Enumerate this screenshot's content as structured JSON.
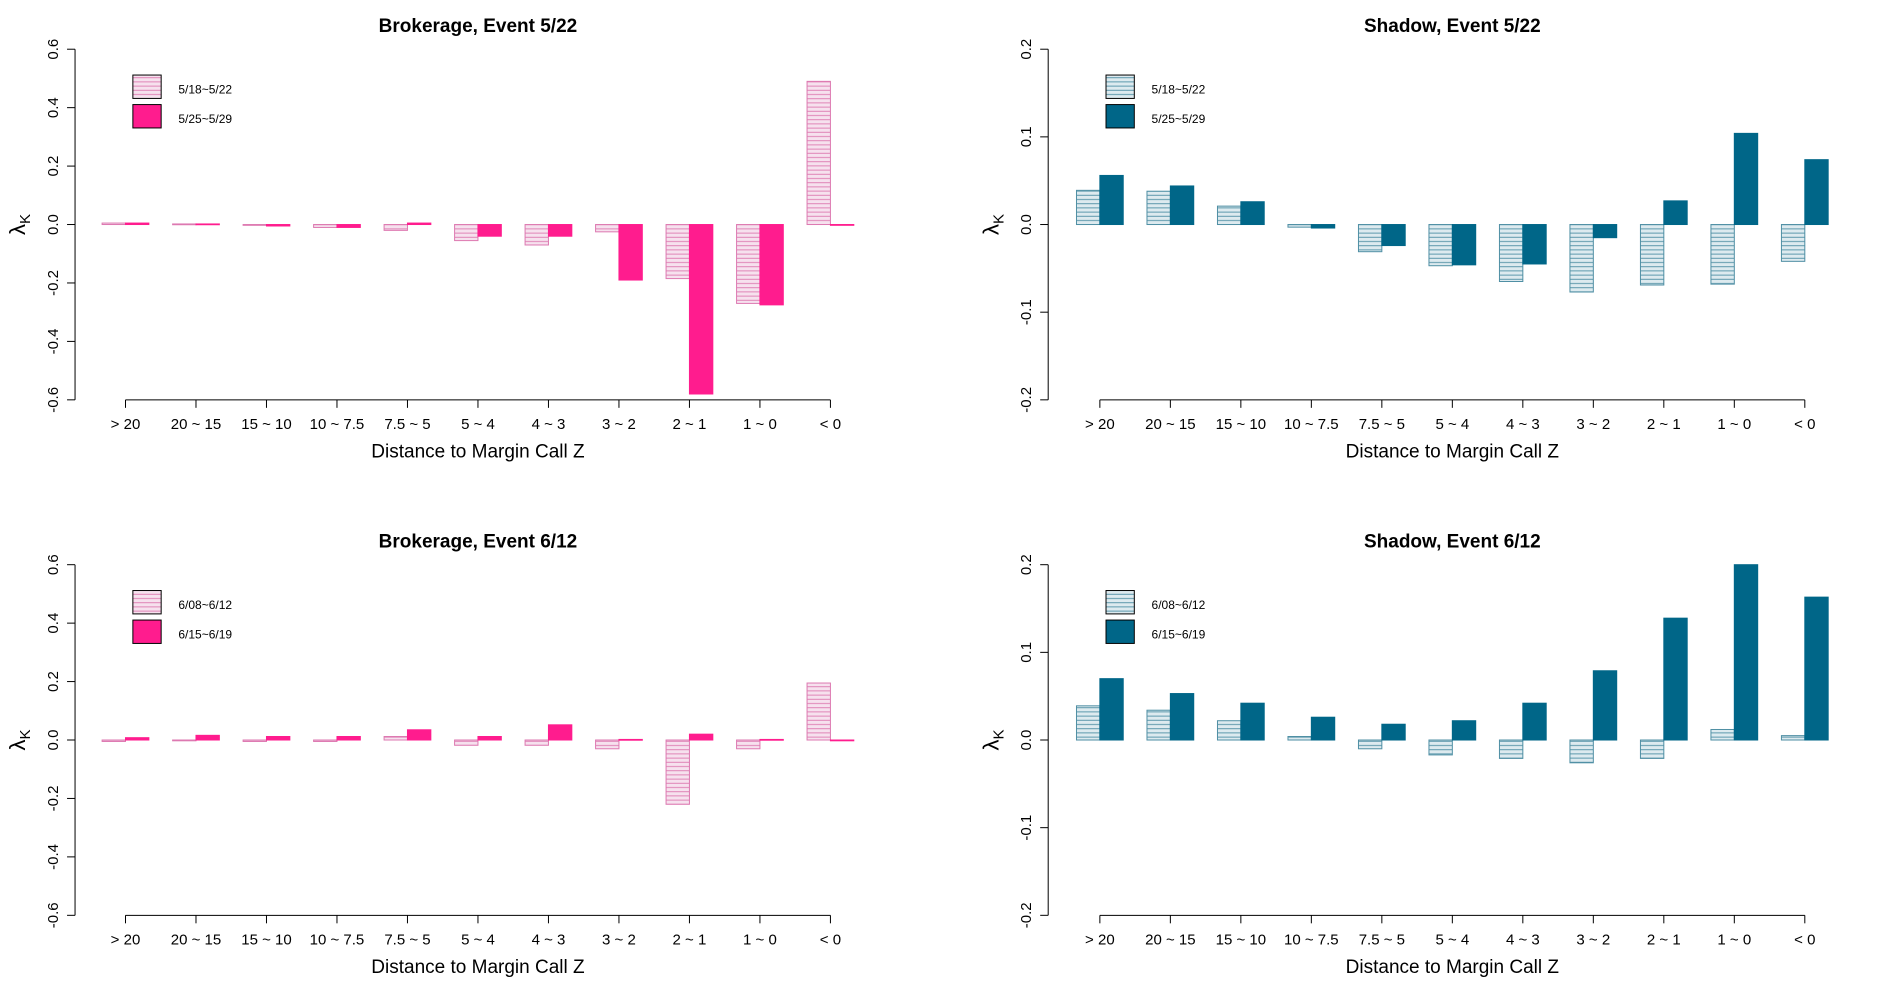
{
  "chart_data": [
    {
      "type": "bar",
      "title": "Brokerage, Event 5/22",
      "xlabel": "Distance to Margin Call Z",
      "ylabel": "λ",
      "ylabel_subscript": "K",
      "ylim": [
        -0.6,
        0.6
      ],
      "yticks": [
        "-0.6",
        "-0.4",
        "-0.2",
        "0.0",
        "0.2",
        "0.4",
        "0.6"
      ],
      "categories": [
        "> 20",
        "20 ~ 15",
        "15 ~ 10",
        "10 ~ 7.5",
        "7.5 ~ 5",
        "5 ~ 4",
        "4 ~ 3",
        "3 ~ 2",
        "2 ~ 1",
        "1 ~ 0",
        "< 0"
      ],
      "series": [
        {
          "name": "5/18~5/22",
          "style": "hatched",
          "values": [
            0.005,
            0.002,
            -0.002,
            -0.01,
            -0.02,
            -0.055,
            -0.07,
            -0.025,
            -0.185,
            -0.27,
            0.49
          ]
        },
        {
          "name": "5/25~5/29",
          "style": "solid",
          "values": [
            0.005,
            0.002,
            -0.005,
            -0.01,
            0.005,
            -0.04,
            -0.04,
            -0.19,
            -0.58,
            -0.275,
            0.0
          ]
        }
      ],
      "colors": {
        "fill": "#FF1C8E",
        "hatch": "#DD79B1",
        "hatch_bg": "#F6E1EE"
      },
      "legend_position": "top-left"
    },
    {
      "type": "bar",
      "title": "Shadow, Event 5/22",
      "xlabel": "Distance to Margin Call Z",
      "ylabel": "λ",
      "ylabel_subscript": "K",
      "ylim": [
        -0.2,
        0.2
      ],
      "yticks": [
        "-0.2",
        "-0.1",
        "0.0",
        "0.1",
        "0.2"
      ],
      "categories": [
        "> 20",
        "20 ~ 15",
        "15 ~ 10",
        "10 ~ 7.5",
        "7.5 ~ 5",
        "5 ~ 4",
        "4 ~ 3",
        "3 ~ 2",
        "2 ~ 1",
        "1 ~ 0",
        "< 0"
      ],
      "series": [
        {
          "name": "5/18~5/22",
          "style": "hatched",
          "values": [
            0.039,
            0.038,
            0.021,
            -0.003,
            -0.031,
            -0.047,
            -0.065,
            -0.077,
            -0.069,
            -0.068,
            -0.042
          ]
        },
        {
          "name": "5/25~5/29",
          "style": "solid",
          "values": [
            0.056,
            0.044,
            0.026,
            -0.004,
            -0.024,
            -0.046,
            -0.045,
            -0.015,
            0.027,
            0.104,
            0.074
          ]
        }
      ],
      "colors": {
        "fill": "#006688",
        "hatch": "#4F8FA4",
        "hatch_bg": "#DDEAEF"
      },
      "legend_position": "top-left"
    },
    {
      "type": "bar",
      "title": "Brokerage, Event 6/12",
      "xlabel": "Distance to Margin Call Z",
      "ylabel": "λ",
      "ylabel_subscript": "K",
      "ylim": [
        -0.6,
        0.6
      ],
      "yticks": [
        "-0.6",
        "-0.4",
        "-0.2",
        "0.0",
        "0.2",
        "0.4",
        "0.6"
      ],
      "categories": [
        "> 20",
        "20 ~ 15",
        "15 ~ 10",
        "10 ~ 7.5",
        "7.5 ~ 5",
        "5 ~ 4",
        "4 ~ 3",
        "3 ~ 2",
        "2 ~ 1",
        "1 ~ 0",
        "< 0"
      ],
      "series": [
        {
          "name": "6/08~6/12",
          "style": "hatched",
          "values": [
            -0.005,
            -0.002,
            -0.005,
            -0.005,
            0.012,
            -0.018,
            -0.018,
            -0.03,
            -0.22,
            -0.03,
            0.195
          ]
        },
        {
          "name": "6/15~6/19",
          "style": "solid",
          "values": [
            0.008,
            0.016,
            0.012,
            0.012,
            0.035,
            0.012,
            0.052,
            0.002,
            0.02,
            0.002,
            0.0
          ]
        }
      ],
      "colors": {
        "fill": "#FF1C8E",
        "hatch": "#DD79B1",
        "hatch_bg": "#F6E1EE"
      },
      "legend_position": "top-left"
    },
    {
      "type": "bar",
      "title": "Shadow, Event 6/12",
      "xlabel": "Distance to Margin Call Z",
      "ylabel": "λ",
      "ylabel_subscript": "K",
      "ylim": [
        -0.2,
        0.2
      ],
      "yticks": [
        "-0.2",
        "-0.1",
        "0.0",
        "0.1",
        "0.2"
      ],
      "categories": [
        "> 20",
        "20 ~ 15",
        "15 ~ 10",
        "10 ~ 7.5",
        "7.5 ~ 5",
        "5 ~ 4",
        "4 ~ 3",
        "3 ~ 2",
        "2 ~ 1",
        "1 ~ 0",
        "< 0"
      ],
      "series": [
        {
          "name": "6/08~6/12",
          "style": "hatched",
          "values": [
            0.039,
            0.034,
            0.022,
            0.004,
            -0.01,
            -0.017,
            -0.021,
            -0.026,
            -0.021,
            0.012,
            0.005
          ]
        },
        {
          "name": "6/15~6/19",
          "style": "solid",
          "values": [
            0.07,
            0.053,
            0.042,
            0.026,
            0.018,
            0.022,
            0.042,
            0.079,
            0.139,
            0.2,
            0.163
          ]
        }
      ],
      "colors": {
        "fill": "#006688",
        "hatch": "#4F8FA4",
        "hatch_bg": "#DDEAEF"
      },
      "legend_position": "top-left"
    }
  ]
}
